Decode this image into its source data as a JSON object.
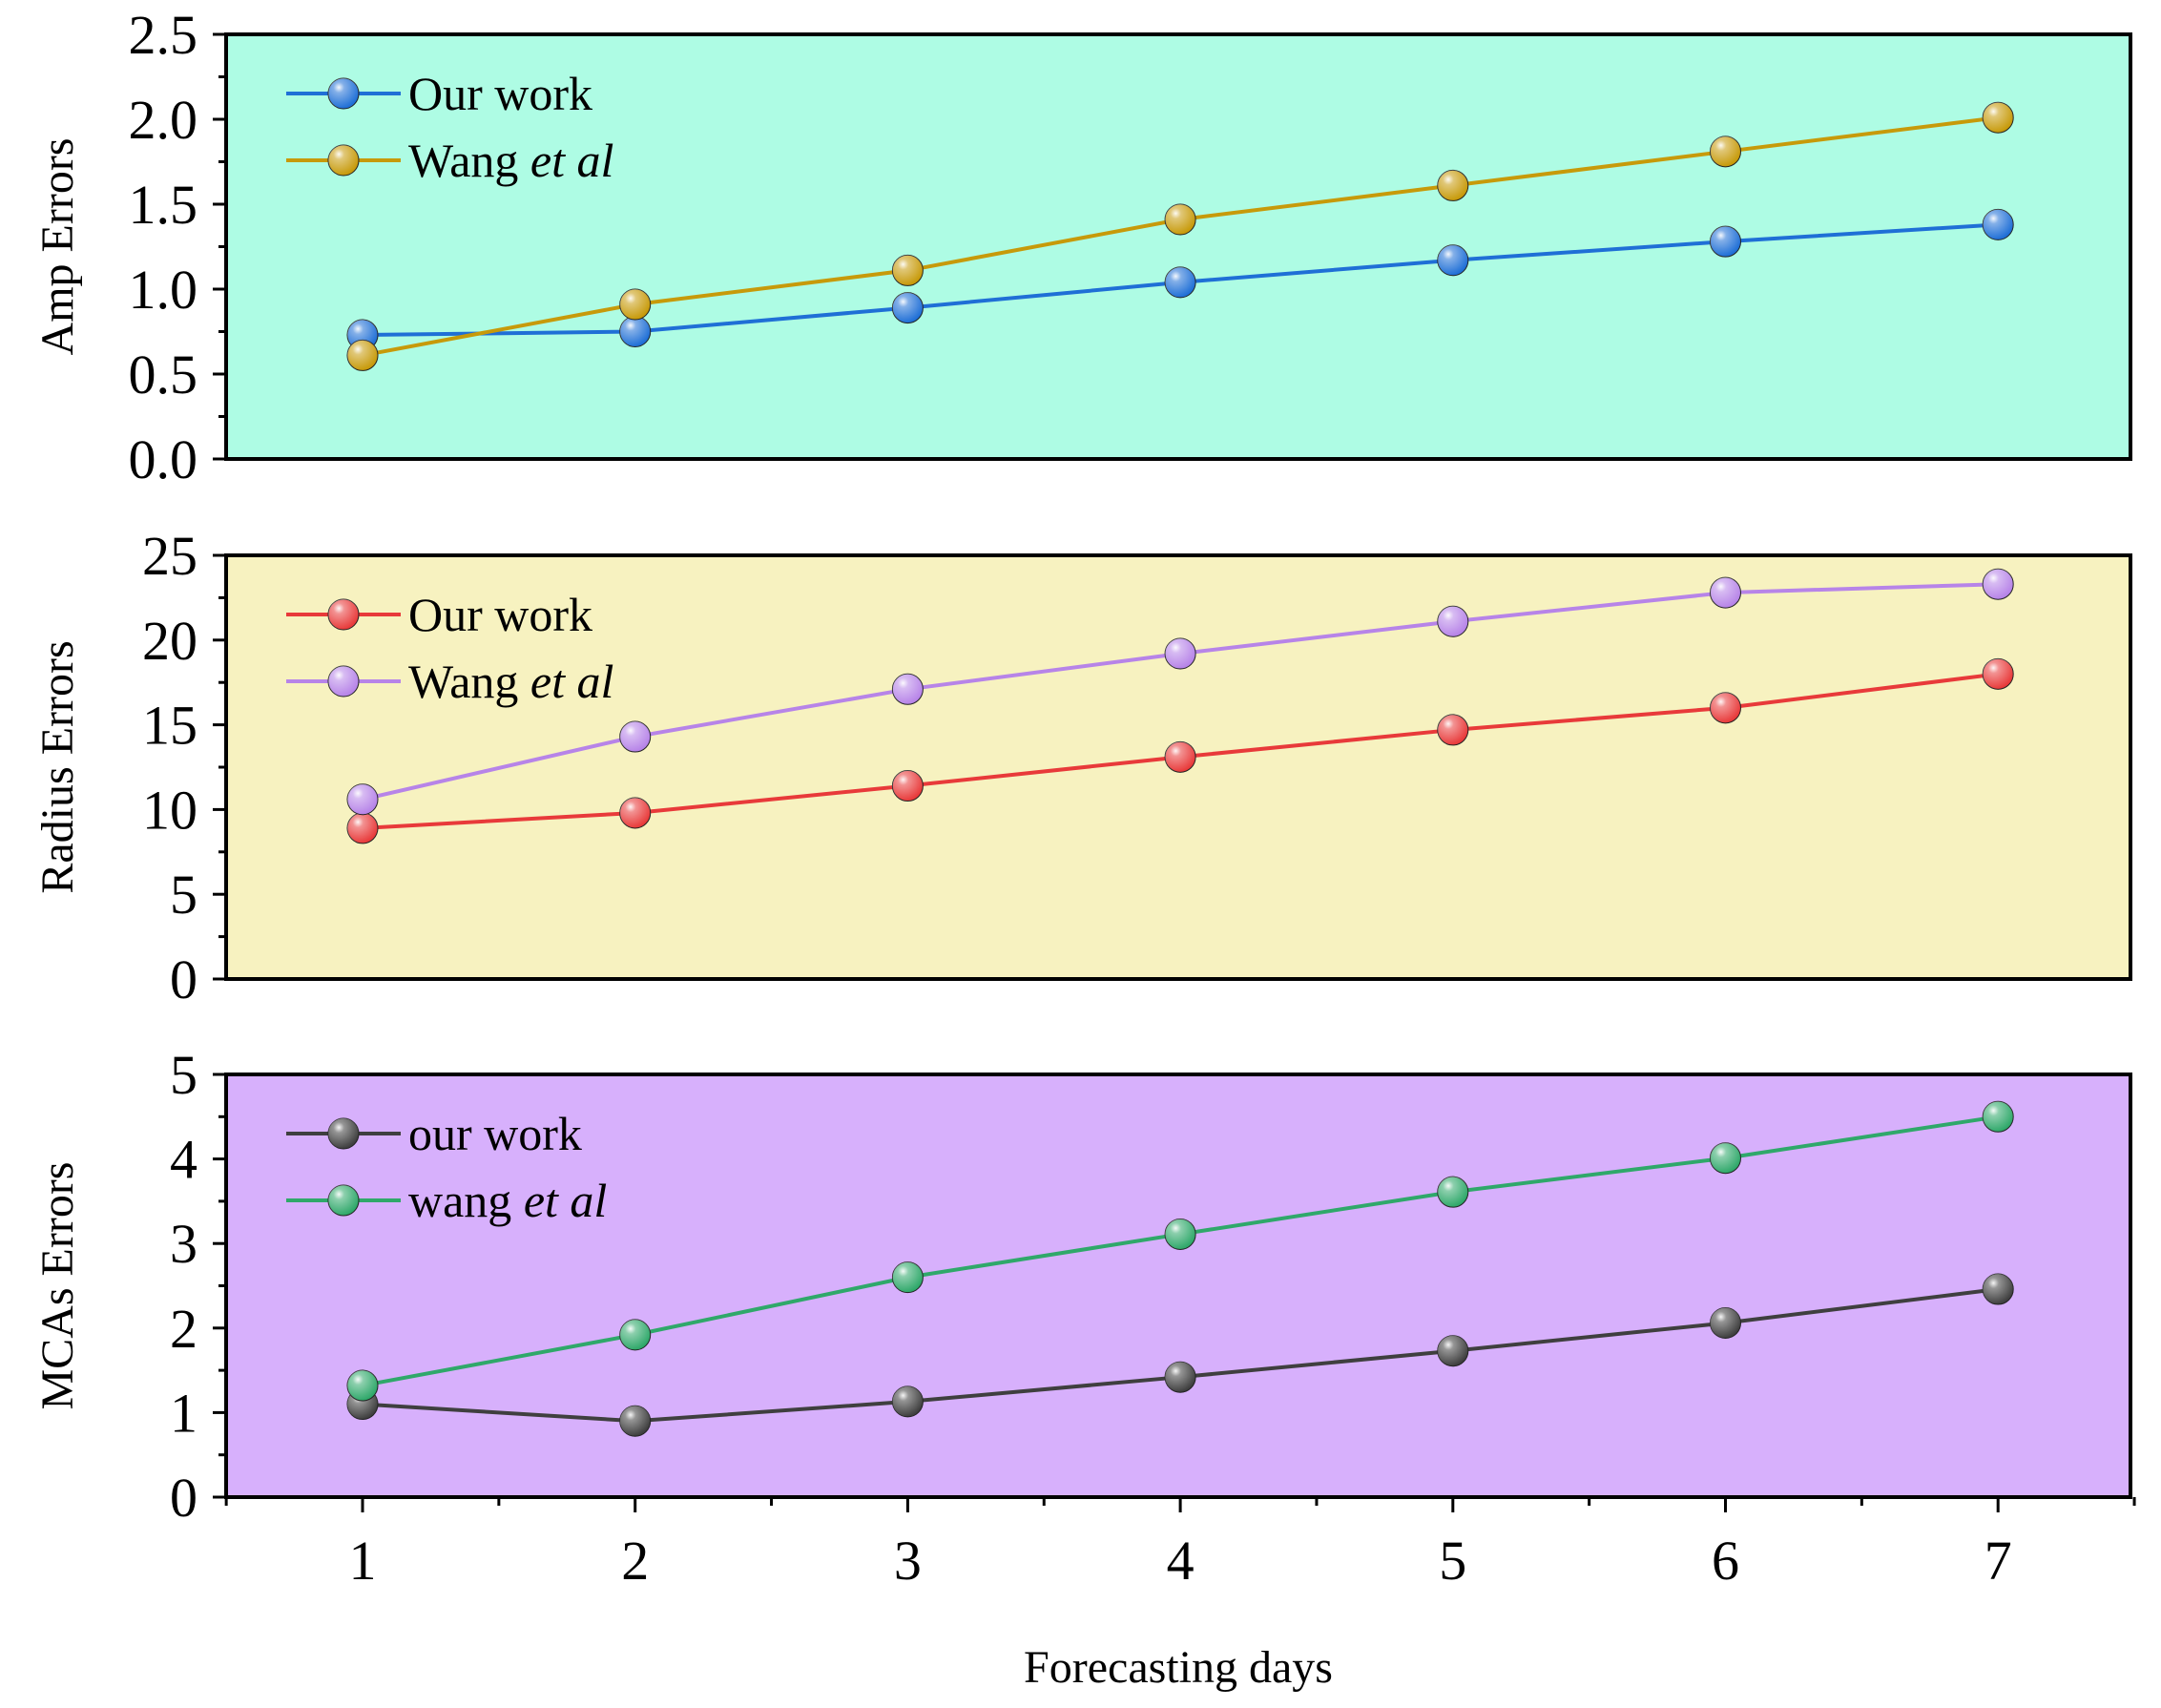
{
  "x_axis": {
    "label": "Forecasting days",
    "categories": [
      "1",
      "2",
      "3",
      "4",
      "5",
      "6",
      "7"
    ]
  },
  "chart_data": [
    {
      "type": "line",
      "title": "",
      "ylabel": "Amp Errors",
      "xlabel": "",
      "ylim": [
        0,
        2.5
      ],
      "yticks": [
        "0.0",
        "0.5",
        "1.0",
        "1.5",
        "2.0",
        "2.5"
      ],
      "background": "#aefce4",
      "legend": "top-left",
      "x": [
        1,
        2,
        3,
        4,
        5,
        6,
        7
      ],
      "series": [
        {
          "name": "Our work",
          "name_main": "Our work",
          "name_italic": "",
          "color": "#1f6fd6",
          "values": [
            0.73,
            0.75,
            0.89,
            1.04,
            1.17,
            1.28,
            1.38
          ]
        },
        {
          "name": "Wang et al",
          "name_main": "Wang ",
          "name_italic": "et al",
          "color": "#c79a0a",
          "values": [
            0.61,
            0.91,
            1.11,
            1.41,
            1.61,
            1.81,
            2.01
          ]
        }
      ]
    },
    {
      "type": "line",
      "title": "",
      "ylabel": "Radius Errors",
      "xlabel": "",
      "ylim": [
        0,
        25
      ],
      "yticks": [
        "0",
        "5",
        "10",
        "15",
        "20",
        "25"
      ],
      "background": "#f7f2c0",
      "legend": "top-left",
      "x": [
        1,
        2,
        3,
        4,
        5,
        6,
        7
      ],
      "series": [
        {
          "name": "Our work",
          "name_main": "Our work",
          "name_italic": "",
          "color": "#e83a3a",
          "values": [
            8.9,
            9.8,
            11.4,
            13.1,
            14.7,
            16.0,
            18.0
          ]
        },
        {
          "name": "Wang et al",
          "name_main": "Wang ",
          "name_italic": "et al",
          "color": "#b784e8",
          "values": [
            10.6,
            14.3,
            17.1,
            19.2,
            21.1,
            22.8,
            23.3
          ]
        }
      ]
    },
    {
      "type": "line",
      "title": "",
      "ylabel": "MCAs Errors",
      "xlabel": "Forecasting days",
      "ylim": [
        0,
        5
      ],
      "yticks": [
        "0",
        "1",
        "2",
        "3",
        "4",
        "5"
      ],
      "background": "#d7b0fc",
      "legend": "top-left",
      "x": [
        1,
        2,
        3,
        4,
        5,
        6,
        7
      ],
      "series": [
        {
          "name": "our work",
          "name_main": "our work",
          "name_italic": "",
          "color": "#3f3f3f",
          "values": [
            1.1,
            0.9,
            1.13,
            1.42,
            1.73,
            2.06,
            2.46
          ]
        },
        {
          "name": "wang et al",
          "name_main": "wang ",
          "name_italic": "et al",
          "color": "#2fa86a",
          "values": [
            1.32,
            1.92,
            2.6,
            3.11,
            3.61,
            4.01,
            4.5
          ]
        }
      ]
    }
  ]
}
